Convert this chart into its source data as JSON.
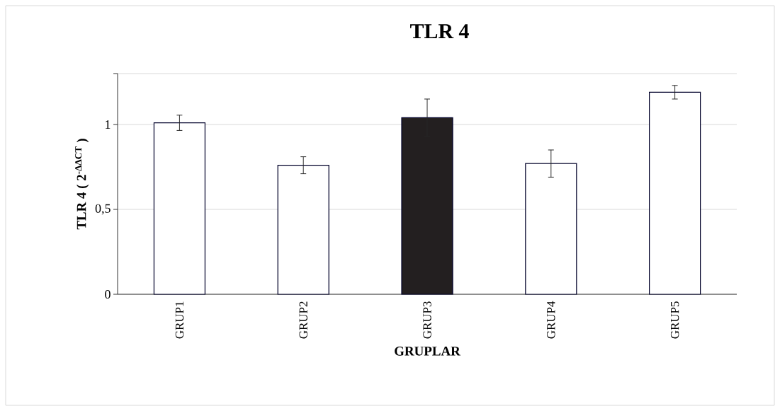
{
  "chart_data": {
    "type": "bar",
    "title": "TLR 4",
    "xlabel": "GRUPLAR",
    "ylabel": "TLR 4 ( 2$^{-ΔΔCT}$ )",
    "categories": [
      "GRUP1",
      "GRUP2",
      "GRUP3",
      "GRUP4",
      "GRUP5"
    ],
    "values": [
      1.01,
      0.76,
      1.04,
      0.77,
      1.19
    ],
    "errors": [
      0.045,
      0.05,
      0.11,
      0.08,
      0.04
    ],
    "colors": [
      "#ffffff",
      "#ffffff",
      "#231f20",
      "#ffffff",
      "#ffffff"
    ],
    "ylim": [
      0,
      1.3
    ],
    "yticks": [
      0,
      {
        "value": 0.5,
        "label": "0,5"
      },
      1,
      {
        "value": 1.3,
        "label": null
      }
    ],
    "grid": "y"
  }
}
